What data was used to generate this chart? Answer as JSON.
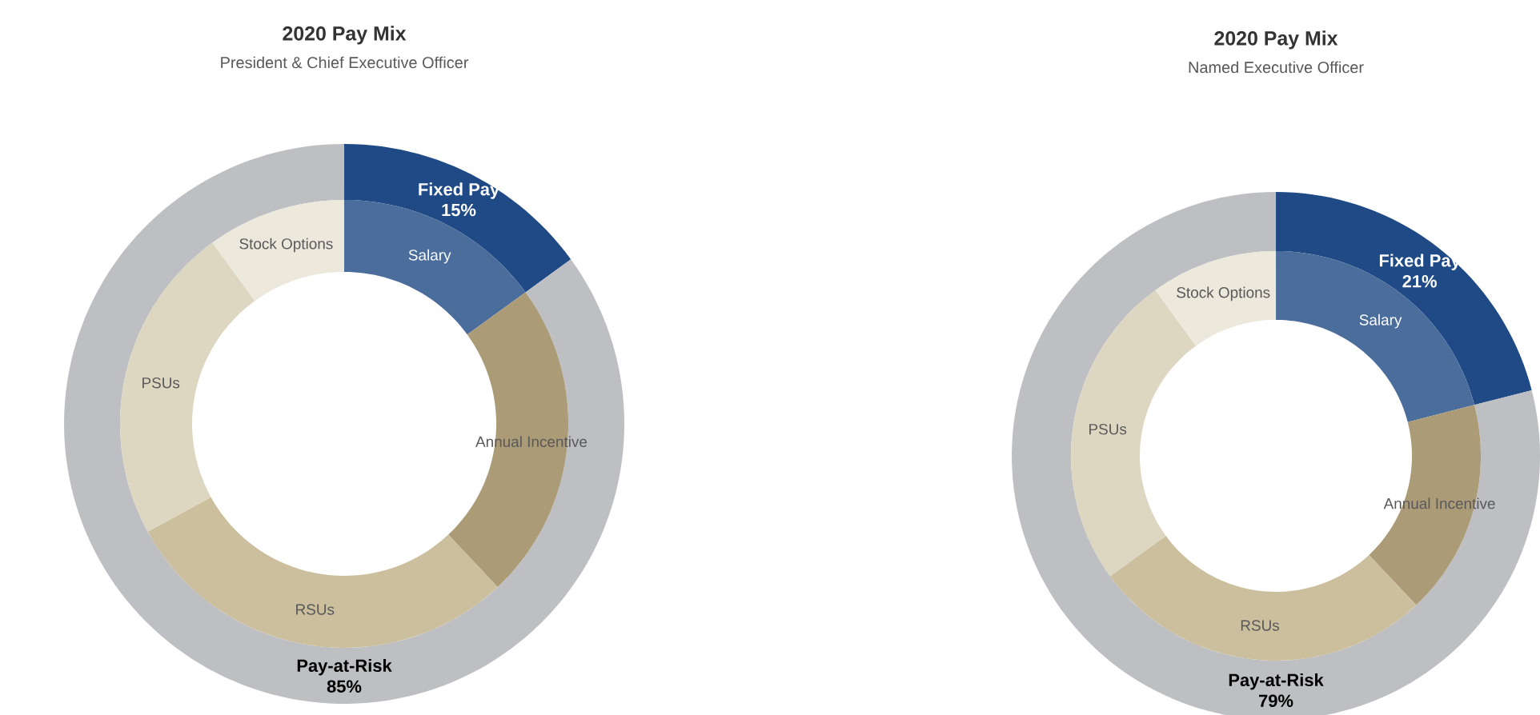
{
  "chart_data": [
    {
      "type": "donut",
      "title": "2020 Pay Mix",
      "subtitle": "President & Chief Executive Officer",
      "categories": [
        "Fixed Pay",
        "Pay-at-Risk"
      ],
      "values": [
        15,
        85
      ],
      "value_labels": [
        "15%",
        "85%"
      ],
      "colors": [
        "#1f4a85",
        "#bdbfc2"
      ]
    },
    {
      "type": "donut",
      "categories": [
        "Salary",
        "Annual Incentive",
        "RSUs",
        "PSUs",
        "Stock Options"
      ],
      "values": [
        15,
        23,
        29,
        23,
        10
      ],
      "colors": [
        "#4a6d9c",
        "#ab9b77",
        "#cbbf9d",
        "#ddd6c1",
        "#ece8dc"
      ]
    },
    {
      "type": "donut",
      "title": "2020 Pay Mix",
      "subtitle": "Named Executive Officer",
      "categories": [
        "Fixed Pay",
        "Pay-at-Risk"
      ],
      "values": [
        21,
        79
      ],
      "value_labels": [
        "21%",
        "79%"
      ],
      "colors": [
        "#1f4a85",
        "#bdbfc2"
      ]
    },
    {
      "type": "donut",
      "categories": [
        "Salary",
        "Annual Incentive",
        "RSUs",
        "PSUs",
        "Stock Options"
      ],
      "values": [
        21,
        17,
        27,
        25,
        10
      ],
      "colors": [
        "#4a6d9c",
        "#ab9b77",
        "#cbbf9d",
        "#ddd6c1",
        "#ece8dc"
      ]
    }
  ]
}
